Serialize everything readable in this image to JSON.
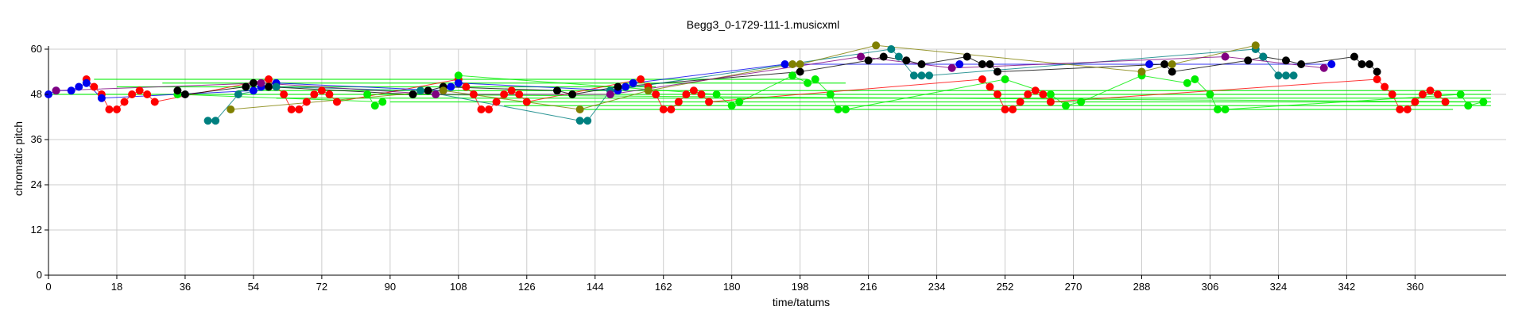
{
  "chart_data": {
    "type": "scatter",
    "title": "Begg3_0-1729-111-1.musicxml",
    "xlabel": "time/tatums",
    "ylabel": "chromatic pitch",
    "xlim": [
      0,
      384
    ],
    "ylim": [
      0,
      60
    ],
    "xticks": [
      0,
      18,
      36,
      54,
      72,
      90,
      108,
      126,
      144,
      162,
      180,
      198,
      216,
      234,
      252,
      270,
      288,
      306,
      324,
      342,
      360
    ],
    "yticks": [
      0,
      12,
      24,
      36,
      48,
      60
    ],
    "grid": true,
    "colors": {
      "red": "#ff0000",
      "blue": "#0000ee",
      "green": "#00ee00",
      "black": "#000000",
      "teal": "#008080",
      "olive": "#808000",
      "purple": "#800080"
    },
    "series": [
      {
        "color": "#ff0000",
        "points": [
          [
            10,
            52
          ],
          [
            12,
            50
          ],
          [
            14,
            48
          ],
          [
            16,
            44
          ],
          [
            18,
            44
          ],
          [
            20,
            46
          ],
          [
            22,
            48
          ],
          [
            24,
            49
          ],
          [
            26,
            48
          ],
          [
            28,
            46
          ],
          [
            58,
            52
          ],
          [
            60,
            50
          ],
          [
            62,
            48
          ],
          [
            64,
            44
          ],
          [
            66,
            44
          ],
          [
            68,
            46
          ],
          [
            70,
            48
          ],
          [
            72,
            49
          ],
          [
            74,
            48
          ],
          [
            76,
            46
          ],
          [
            108,
            52
          ],
          [
            110,
            50
          ],
          [
            112,
            48
          ],
          [
            114,
            44
          ],
          [
            116,
            44
          ],
          [
            118,
            46
          ],
          [
            120,
            48
          ],
          [
            122,
            49
          ],
          [
            124,
            48
          ],
          [
            126,
            46
          ],
          [
            156,
            52
          ],
          [
            158,
            50
          ],
          [
            160,
            48
          ],
          [
            162,
            44
          ],
          [
            164,
            44
          ],
          [
            166,
            46
          ],
          [
            168,
            48
          ],
          [
            170,
            49
          ],
          [
            172,
            48
          ],
          [
            174,
            46
          ],
          [
            246,
            52
          ],
          [
            248,
            50
          ],
          [
            250,
            48
          ],
          [
            252,
            44
          ],
          [
            254,
            44
          ],
          [
            256,
            46
          ],
          [
            258,
            48
          ],
          [
            260,
            49
          ],
          [
            262,
            48
          ],
          [
            264,
            46
          ],
          [
            350,
            52
          ],
          [
            352,
            50
          ],
          [
            354,
            48
          ],
          [
            356,
            44
          ],
          [
            358,
            44
          ],
          [
            360,
            46
          ],
          [
            362,
            48
          ],
          [
            364,
            49
          ],
          [
            366,
            48
          ],
          [
            368,
            46
          ]
        ]
      },
      {
        "color": "#0000ee",
        "points": [
          [
            0,
            48
          ],
          [
            2,
            49
          ],
          [
            6,
            49
          ],
          [
            8,
            50
          ],
          [
            10,
            51
          ],
          [
            14,
            47
          ],
          [
            54,
            49
          ],
          [
            56,
            50
          ],
          [
            60,
            51
          ],
          [
            104,
            49
          ],
          [
            106,
            50
          ],
          [
            108,
            51
          ],
          [
            150,
            49
          ],
          [
            152,
            50
          ],
          [
            154,
            51
          ],
          [
            194,
            56
          ],
          [
            240,
            56
          ],
          [
            290,
            56
          ],
          [
            338,
            56
          ]
        ]
      },
      {
        "color": "#00ee00",
        "points": [
          [
            108,
            53
          ],
          [
            176,
            48
          ],
          [
            180,
            45
          ],
          [
            182,
            46
          ],
          [
            196,
            53
          ],
          [
            200,
            51
          ],
          [
            202,
            52
          ],
          [
            206,
            48
          ],
          [
            208,
            44
          ],
          [
            210,
            44
          ],
          [
            252,
            52
          ],
          [
            264,
            48
          ],
          [
            268,
            45
          ],
          [
            272,
            46
          ],
          [
            288,
            53
          ],
          [
            300,
            51
          ],
          [
            302,
            52
          ],
          [
            306,
            48
          ],
          [
            308,
            44
          ],
          [
            310,
            44
          ],
          [
            372,
            48
          ],
          [
            374,
            45
          ],
          [
            378,
            46
          ],
          [
            84,
            48
          ],
          [
            86,
            45
          ],
          [
            88,
            46
          ],
          [
            34,
            48
          ]
        ]
      },
      {
        "color": "#000000",
        "points": [
          [
            34,
            49
          ],
          [
            36,
            48
          ],
          [
            52,
            50
          ],
          [
            54,
            51
          ],
          [
            58,
            50
          ],
          [
            96,
            48
          ],
          [
            100,
            49
          ],
          [
            104,
            50
          ],
          [
            134,
            49
          ],
          [
            138,
            48
          ],
          [
            150,
            50
          ],
          [
            198,
            54
          ],
          [
            216,
            57
          ],
          [
            220,
            58
          ],
          [
            226,
            57
          ],
          [
            230,
            56
          ],
          [
            242,
            58
          ],
          [
            246,
            56
          ],
          [
            248,
            56
          ],
          [
            250,
            54
          ],
          [
            294,
            56
          ],
          [
            296,
            54
          ],
          [
            316,
            57
          ],
          [
            320,
            58
          ],
          [
            326,
            57
          ],
          [
            330,
            56
          ],
          [
            344,
            58
          ],
          [
            346,
            56
          ],
          [
            348,
            56
          ],
          [
            350,
            54
          ]
        ]
      },
      {
        "color": "#008080",
        "points": [
          [
            42,
            41
          ],
          [
            44,
            41
          ],
          [
            50,
            48
          ],
          [
            60,
            50
          ],
          [
            98,
            49
          ],
          [
            140,
            41
          ],
          [
            142,
            41
          ],
          [
            148,
            49
          ],
          [
            222,
            60
          ],
          [
            224,
            58
          ],
          [
            228,
            53
          ],
          [
            230,
            53
          ],
          [
            232,
            53
          ],
          [
            318,
            60
          ],
          [
            320,
            58
          ],
          [
            324,
            53
          ],
          [
            326,
            53
          ],
          [
            328,
            53
          ]
        ]
      },
      {
        "color": "#808000",
        "points": [
          [
            48,
            44
          ],
          [
            104,
            49
          ],
          [
            140,
            44
          ],
          [
            158,
            49
          ],
          [
            196,
            56
          ],
          [
            198,
            56
          ],
          [
            218,
            61
          ],
          [
            288,
            54
          ],
          [
            296,
            56
          ],
          [
            318,
            61
          ]
        ]
      },
      {
        "color": "#800080",
        "points": [
          [
            2,
            49
          ],
          [
            56,
            51
          ],
          [
            102,
            48
          ],
          [
            148,
            48
          ],
          [
            214,
            58
          ],
          [
            238,
            55
          ],
          [
            310,
            58
          ],
          [
            336,
            55
          ]
        ]
      }
    ],
    "horizontal_lines": [
      {
        "color": "#00ee00",
        "y": 52,
        "from": 12,
        "to": 200
      },
      {
        "color": "#00ee00",
        "y": 51,
        "from": 30,
        "to": 210
      },
      {
        "color": "#00ee00",
        "y": 50,
        "from": 18,
        "to": 160
      },
      {
        "color": "#00ee00",
        "y": 49,
        "from": 50,
        "to": 380
      },
      {
        "color": "#00ee00",
        "y": 48,
        "from": 0,
        "to": 380
      },
      {
        "color": "#00ee00",
        "y": 47,
        "from": 60,
        "to": 380
      },
      {
        "color": "#00ee00",
        "y": 46,
        "from": 90,
        "to": 380
      },
      {
        "color": "#00ee00",
        "y": 45,
        "from": 120,
        "to": 380
      },
      {
        "color": "#00ee00",
        "y": 44,
        "from": 140,
        "to": 370
      }
    ]
  }
}
